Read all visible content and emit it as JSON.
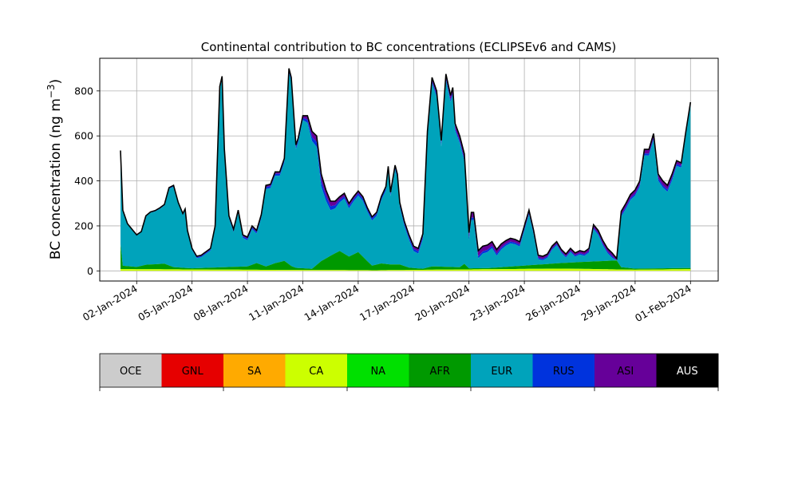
{
  "chart_data": {
    "type": "area",
    "stacked": true,
    "title": "Continental contribution to BC concentrations (ECLIPSEv6 and CAMS)",
    "ylabel_base": "BC concentration (ng m",
    "ylabel_exp": "−3",
    "ylabel_close": ")",
    "xlabel": "",
    "xlim": [
      "2023-12-31T00:00",
      "2024-02-02T12:00"
    ],
    "ylim": [
      -45,
      945
    ],
    "yticks": [
      0,
      200,
      400,
      600,
      800
    ],
    "xticks": [
      "02-Jan-2024",
      "05-Jan-2024",
      "08-Jan-2024",
      "11-Jan-2024",
      "14-Jan-2024",
      "17-Jan-2024",
      "20-Jan-2024",
      "23-Jan-2024",
      "26-Jan-2024",
      "29-Jan-2024",
      "01-Feb-2024"
    ],
    "grid": true,
    "legend_position": "below-plot",
    "regions": [
      {
        "name": "OCE",
        "color": "#cccccc"
      },
      {
        "name": "GNL",
        "color": "#e60000"
      },
      {
        "name": "SA",
        "color": "#ffaa00"
      },
      {
        "name": "CA",
        "color": "#ccff00"
      },
      {
        "name": "NA",
        "color": "#00e000"
      },
      {
        "name": "AFR",
        "color": "#009900"
      },
      {
        "name": "EUR",
        "color": "#00a3bb"
      },
      {
        "name": "RUS",
        "color": "#0033dd"
      },
      {
        "name": "ASI",
        "color": "#660099"
      },
      {
        "name": "AUS",
        "color": "#000000"
      }
    ],
    "total_series": [
      [
        "2024-01-01T03:00",
        535
      ],
      [
        "2024-01-01T06:00",
        270
      ],
      [
        "2024-01-01T12:00",
        210
      ],
      [
        "2024-01-01T18:00",
        185
      ],
      [
        "2024-01-02T00:00",
        160
      ],
      [
        "2024-01-02T06:00",
        175
      ],
      [
        "2024-01-02T12:00",
        245
      ],
      [
        "2024-01-02T18:00",
        262
      ],
      [
        "2024-01-03T00:00",
        268
      ],
      [
        "2024-01-03T06:00",
        280
      ],
      [
        "2024-01-03T12:00",
        295
      ],
      [
        "2024-01-03T18:00",
        370
      ],
      [
        "2024-01-04T00:00",
        380
      ],
      [
        "2024-01-04T06:00",
        305
      ],
      [
        "2024-01-04T12:00",
        255
      ],
      [
        "2024-01-04T15:00",
        275
      ],
      [
        "2024-01-04T18:00",
        180
      ],
      [
        "2024-01-05T00:00",
        100
      ],
      [
        "2024-01-05T06:00",
        65
      ],
      [
        "2024-01-05T12:00",
        70
      ],
      [
        "2024-01-05T18:00",
        85
      ],
      [
        "2024-01-06T00:00",
        100
      ],
      [
        "2024-01-06T06:00",
        200
      ],
      [
        "2024-01-06T12:00",
        820
      ],
      [
        "2024-01-06T15:00",
        865
      ],
      [
        "2024-01-06T18:00",
        540
      ],
      [
        "2024-01-07T00:00",
        245
      ],
      [
        "2024-01-07T06:00",
        185
      ],
      [
        "2024-01-07T12:00",
        270
      ],
      [
        "2024-01-07T18:00",
        160
      ],
      [
        "2024-01-08T00:00",
        150
      ],
      [
        "2024-01-08T06:00",
        200
      ],
      [
        "2024-01-08T12:00",
        180
      ],
      [
        "2024-01-08T18:00",
        250
      ],
      [
        "2024-01-09T00:00",
        380
      ],
      [
        "2024-01-09T06:00",
        385
      ],
      [
        "2024-01-09T12:00",
        440
      ],
      [
        "2024-01-09T18:00",
        440
      ],
      [
        "2024-01-10T00:00",
        500
      ],
      [
        "2024-01-10T06:00",
        900
      ],
      [
        "2024-01-10T09:00",
        860
      ],
      [
        "2024-01-10T15:00",
        560
      ],
      [
        "2024-01-10T18:00",
        590
      ],
      [
        "2024-01-11T00:00",
        690
      ],
      [
        "2024-01-11T06:00",
        690
      ],
      [
        "2024-01-11T12:00",
        620
      ],
      [
        "2024-01-11T18:00",
        600
      ],
      [
        "2024-01-12T00:00",
        430
      ],
      [
        "2024-01-12T06:00",
        360
      ],
      [
        "2024-01-12T12:00",
        310
      ],
      [
        "2024-01-12T18:00",
        310
      ],
      [
        "2024-01-13T00:00",
        330
      ],
      [
        "2024-01-13T06:00",
        345
      ],
      [
        "2024-01-13T12:00",
        300
      ],
      [
        "2024-01-13T18:00",
        330
      ],
      [
        "2024-01-14T00:00",
        355
      ],
      [
        "2024-01-14T06:00",
        330
      ],
      [
        "2024-01-14T12:00",
        280
      ],
      [
        "2024-01-14T18:00",
        240
      ],
      [
        "2024-01-15T00:00",
        260
      ],
      [
        "2024-01-15T06:00",
        330
      ],
      [
        "2024-01-15T12:00",
        375
      ],
      [
        "2024-01-15T15:00",
        465
      ],
      [
        "2024-01-15T18:00",
        350
      ],
      [
        "2024-01-16T00:00",
        470
      ],
      [
        "2024-01-16T03:00",
        430
      ],
      [
        "2024-01-16T06:00",
        305
      ],
      [
        "2024-01-16T12:00",
        220
      ],
      [
        "2024-01-16T18:00",
        160
      ],
      [
        "2024-01-17T00:00",
        110
      ],
      [
        "2024-01-17T06:00",
        100
      ],
      [
        "2024-01-17T12:00",
        165
      ],
      [
        "2024-01-17T18:00",
        620
      ],
      [
        "2024-01-18T00:00",
        860
      ],
      [
        "2024-01-18T06:00",
        800
      ],
      [
        "2024-01-18T12:00",
        580
      ],
      [
        "2024-01-18T18:00",
        875
      ],
      [
        "2024-01-19T00:00",
        780
      ],
      [
        "2024-01-19T03:00",
        815
      ],
      [
        "2024-01-19T06:00",
        655
      ],
      [
        "2024-01-19T12:00",
        600
      ],
      [
        "2024-01-19T18:00",
        520
      ],
      [
        "2024-01-20T00:00",
        170
      ],
      [
        "2024-01-20T03:00",
        260
      ],
      [
        "2024-01-20T06:00",
        260
      ],
      [
        "2024-01-20T12:00",
        90
      ],
      [
        "2024-01-20T18:00",
        110
      ],
      [
        "2024-01-21T00:00",
        115
      ],
      [
        "2024-01-21T06:00",
        130
      ],
      [
        "2024-01-21T12:00",
        95
      ],
      [
        "2024-01-21T18:00",
        120
      ],
      [
        "2024-01-22T00:00",
        135
      ],
      [
        "2024-01-22T06:00",
        145
      ],
      [
        "2024-01-22T12:00",
        140
      ],
      [
        "2024-01-22T18:00",
        130
      ],
      [
        "2024-01-23T00:00",
        200
      ],
      [
        "2024-01-23T06:00",
        270
      ],
      [
        "2024-01-23T12:00",
        180
      ],
      [
        "2024-01-23T18:00",
        70
      ],
      [
        "2024-01-24T00:00",
        65
      ],
      [
        "2024-01-24T06:00",
        75
      ],
      [
        "2024-01-24T12:00",
        110
      ],
      [
        "2024-01-24T18:00",
        130
      ],
      [
        "2024-01-25T00:00",
        95
      ],
      [
        "2024-01-25T06:00",
        75
      ],
      [
        "2024-01-25T12:00",
        100
      ],
      [
        "2024-01-25T18:00",
        80
      ],
      [
        "2024-01-26T00:00",
        90
      ],
      [
        "2024-01-26T06:00",
        85
      ],
      [
        "2024-01-26T12:00",
        100
      ],
      [
        "2024-01-26T18:00",
        205
      ],
      [
        "2024-01-27T00:00",
        180
      ],
      [
        "2024-01-27T06:00",
        135
      ],
      [
        "2024-01-27T12:00",
        100
      ],
      [
        "2024-01-27T18:00",
        80
      ],
      [
        "2024-01-28T00:00",
        55
      ],
      [
        "2024-01-28T06:00",
        265
      ],
      [
        "2024-01-28T12:00",
        300
      ],
      [
        "2024-01-28T18:00",
        340
      ],
      [
        "2024-01-29T00:00",
        360
      ],
      [
        "2024-01-29T06:00",
        400
      ],
      [
        "2024-01-29T12:00",
        540
      ],
      [
        "2024-01-29T18:00",
        540
      ],
      [
        "2024-01-30T00:00",
        610
      ],
      [
        "2024-01-30T06:00",
        430
      ],
      [
        "2024-01-30T12:00",
        400
      ],
      [
        "2024-01-30T18:00",
        380
      ],
      [
        "2024-01-31T00:00",
        430
      ],
      [
        "2024-01-31T06:00",
        490
      ],
      [
        "2024-01-31T12:00",
        480
      ],
      [
        "2024-01-31T18:00",
        620
      ],
      [
        "2024-02-01T00:00",
        750
      ]
    ],
    "afr_series": [
      [
        "2024-01-01T03:00",
        110
      ],
      [
        "2024-01-01T06:00",
        15
      ],
      [
        "2024-01-02T00:00",
        10
      ],
      [
        "2024-01-02T12:00",
        20
      ],
      [
        "2024-01-03T12:00",
        25
      ],
      [
        "2024-01-04T00:00",
        10
      ],
      [
        "2024-01-05T00:00",
        5
      ],
      [
        "2024-01-08T00:00",
        15
      ],
      [
        "2024-01-08T12:00",
        30
      ],
      [
        "2024-01-09T00:00",
        15
      ],
      [
        "2024-01-09T12:00",
        30
      ],
      [
        "2024-01-10T00:00",
        40
      ],
      [
        "2024-01-10T12:00",
        10
      ],
      [
        "2024-01-11T12:00",
        5
      ],
      [
        "2024-01-12T00:00",
        40
      ],
      [
        "2024-01-12T18:00",
        75
      ],
      [
        "2024-01-13T00:00",
        85
      ],
      [
        "2024-01-13T12:00",
        60
      ],
      [
        "2024-01-14T00:00",
        80
      ],
      [
        "2024-01-14T18:00",
        20
      ],
      [
        "2024-01-15T06:00",
        30
      ],
      [
        "2024-01-15T18:00",
        25
      ],
      [
        "2024-01-16T06:00",
        25
      ],
      [
        "2024-01-16T18:00",
        10
      ],
      [
        "2024-01-17T12:00",
        5
      ],
      [
        "2024-01-18T00:00",
        15
      ],
      [
        "2024-01-19T12:00",
        10
      ],
      [
        "2024-01-19T18:00",
        25
      ],
      [
        "2024-01-20T00:00",
        5
      ],
      [
        "2024-01-21T00:00",
        5
      ],
      [
        "2024-01-28T00:00",
        40
      ],
      [
        "2024-01-28T06:00",
        10
      ],
      [
        "2024-01-29T00:00",
        5
      ],
      [
        "2024-02-01T00:00",
        5
      ]
    ],
    "ca_series": [
      [
        "2024-01-01T03:00",
        8
      ],
      [
        "2024-01-08T00:00",
        5
      ],
      [
        "2024-01-15T00:00",
        3
      ],
      [
        "2024-01-25T00:00",
        10
      ],
      [
        "2024-01-27T00:00",
        8
      ],
      [
        "2024-01-29T00:00",
        5
      ],
      [
        "2024-02-01T00:00",
        8
      ]
    ],
    "asi_offset": [
      [
        "2024-01-01T03:00",
        0
      ],
      [
        "2024-01-11T00:00",
        10
      ],
      [
        "2024-01-11T12:00",
        25
      ],
      [
        "2024-01-12T00:00",
        30
      ],
      [
        "2024-01-13T00:00",
        15
      ],
      [
        "2024-01-15T00:00",
        5
      ],
      [
        "2024-01-17T00:00",
        12
      ],
      [
        "2024-01-20T12:00",
        25
      ],
      [
        "2024-01-22T00:00",
        15
      ],
      [
        "2024-01-25T00:00",
        10
      ],
      [
        "2024-01-28T00:00",
        15
      ],
      [
        "2024-01-30T12:00",
        20
      ],
      [
        "2024-02-01T00:00",
        10
      ]
    ],
    "rus_offset": [
      [
        "2024-01-01T03:00",
        0
      ],
      [
        "2024-01-11T00:00",
        10
      ],
      [
        "2024-01-12T00:00",
        25
      ],
      [
        "2024-01-13T00:00",
        10
      ],
      [
        "2024-01-20T12:00",
        10
      ],
      [
        "2024-01-25T00:00",
        5
      ],
      [
        "2024-01-31T00:00",
        10
      ],
      [
        "2024-02-01T00:00",
        5
      ]
    ]
  }
}
